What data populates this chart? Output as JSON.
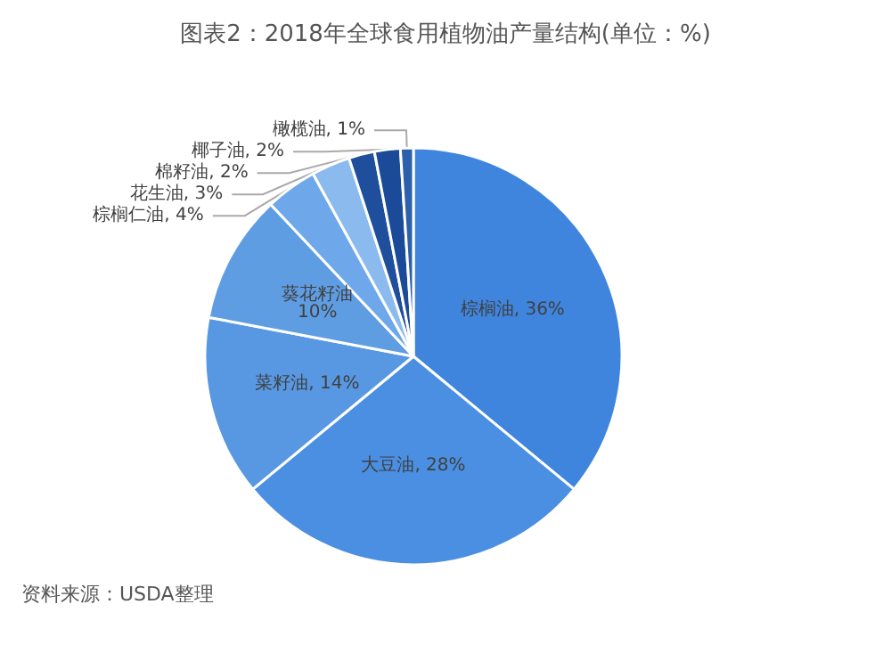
{
  "chart_data": {
    "type": "pie",
    "title": "图表2：2018年全球食用植物油产量结构(单位：%)",
    "categories": [
      "棕榈油",
      "大豆油",
      "菜籽油",
      "葵花籽油",
      "棕榈仁油",
      "花生油",
      "棉籽油",
      "椰子油",
      "橄榄油"
    ],
    "values": [
      36,
      28,
      14,
      10,
      4,
      3,
      2,
      2,
      1
    ],
    "value_labels": [
      "36%",
      "28%",
      "14%",
      "10%",
      "4%",
      "3%",
      "2%",
      "2%",
      "1%"
    ],
    "colors": [
      "#3f85de",
      "#4a8fe2",
      "#5898e2",
      "#5f9de3",
      "#6ea8ea",
      "#8bbaef",
      "#1f4f9c",
      "#1b4a98",
      "#2d60aa"
    ],
    "annotations": [
      "资料来源：USDA整理"
    ],
    "legend": false
  }
}
